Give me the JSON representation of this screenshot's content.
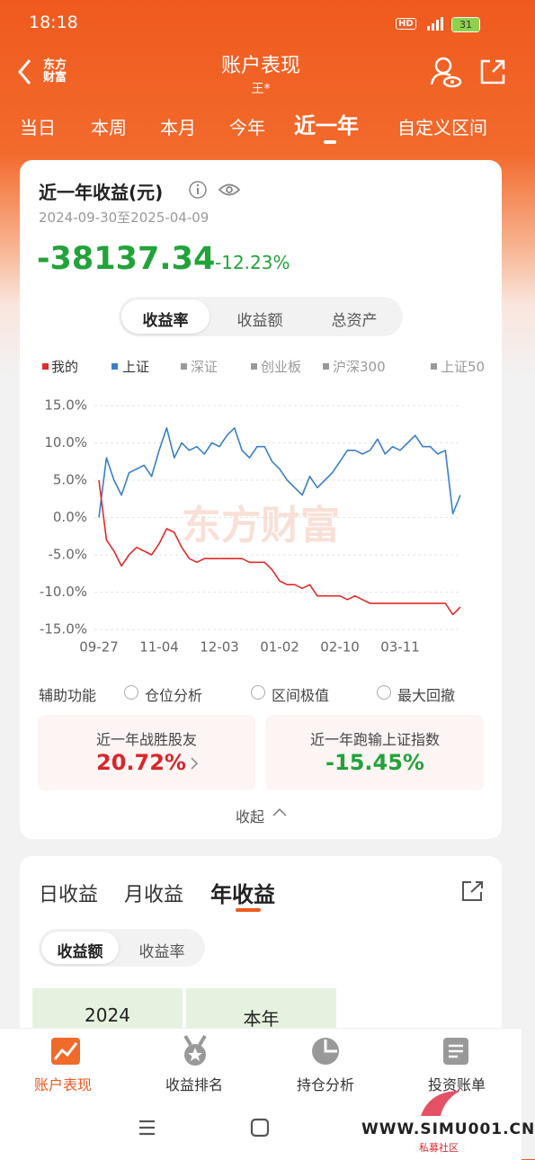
{
  "status_bar": {
    "time": "18:18",
    "battery": "31"
  },
  "header": {
    "logo": "东方财富",
    "title": "账户表现",
    "subtitle": "王*"
  },
  "tabs": [
    "当日",
    "本周",
    "本月",
    "今年",
    "近一年",
    "自定义区间"
  ],
  "summary": {
    "title": "近一年收益(元)",
    "date_range": "2024-09-30至2025-04-09",
    "amount": "-38137.34",
    "percent": "-12.23%"
  },
  "metric_tabs": [
    "收益率",
    "收益额",
    "总资产"
  ],
  "legend_extra": [
    "深证",
    "创业板",
    "沪深300",
    "上证50"
  ],
  "chart_data": {
    "type": "line",
    "watermark": "东方财富",
    "categories": [
      "09-27",
      null,
      null,
      null,
      null,
      null,
      null,
      null,
      "11-04",
      null,
      null,
      null,
      null,
      null,
      null,
      null,
      "12-03",
      null,
      null,
      null,
      null,
      null,
      null,
      null,
      "01-02",
      null,
      null,
      null,
      null,
      null,
      null,
      null,
      "02-10",
      null,
      null,
      null,
      null,
      null,
      null,
      null,
      "03-11",
      null,
      null,
      null,
      null,
      null,
      null,
      null,
      null
    ],
    "series": [
      {
        "name": "我的",
        "color": "#e02a2a",
        "values": [
          5,
          -3,
          -4.5,
          -6.5,
          -5,
          -4,
          -4.5,
          -5,
          -3.5,
          -1.5,
          -2,
          -4,
          -5.5,
          -6,
          -5.5,
          -5.5,
          -5.5,
          -5.5,
          -5.5,
          -5.5,
          -6,
          -6,
          -6,
          -7,
          -8.5,
          -9,
          -9,
          -9.5,
          -9,
          -10.5,
          -10.5,
          -10.5,
          -10.5,
          -11,
          -10.5,
          -11,
          -11.5,
          -11.5,
          -11.5,
          -11.5,
          -11.5,
          -11.5,
          -11.5,
          -11.5,
          -11.5,
          -11.5,
          -11.5,
          -13,
          -12
        ]
      },
      {
        "name": "上证",
        "color": "#3b7ec8",
        "values": [
          0,
          8,
          5,
          3,
          6,
          6.5,
          7,
          5.5,
          9,
          12,
          8,
          10,
          9,
          9.5,
          8.5,
          10,
          9.5,
          11,
          12,
          9,
          8,
          9.5,
          9.5,
          7.5,
          6.5,
          5,
          4,
          3,
          5.5,
          4,
          5,
          6,
          7.5,
          9,
          9,
          8.5,
          9,
          10.5,
          8.5,
          9.5,
          9,
          10,
          11,
          9.5,
          9.5,
          8.5,
          9,
          0.5,
          3
        ]
      }
    ],
    "ylim": [
      -15,
      15
    ],
    "yticks": [
      {
        "value": 15,
        "label": "15.0%"
      },
      {
        "value": 10,
        "label": "10.0%"
      },
      {
        "value": 5,
        "label": "5.0%"
      },
      {
        "value": 0,
        "label": "0.0%"
      },
      {
        "value": -5,
        "label": "-5.0%"
      },
      {
        "value": -10,
        "label": "-10.0%"
      },
      {
        "value": -15,
        "label": "-15.0%"
      }
    ],
    "grid": true
  },
  "aux": {
    "label": "辅助功能",
    "options": [
      "仓位分析",
      "区间极值",
      "最大回撤"
    ]
  },
  "stats": [
    {
      "label": "近一年战胜股友",
      "value": "20.72%"
    },
    {
      "label": "近一年跑输上证指数",
      "value": "-15.45%"
    }
  ],
  "collapse": "收起",
  "period_tabs": [
    "日收益",
    "月收益",
    "年收益"
  ],
  "sub_tabs": [
    "收益额",
    "收益率"
  ],
  "year_cells": [
    "2024",
    "本年"
  ],
  "bottom_nav": [
    "账户表现",
    "收益排名",
    "持仓分析",
    "投资账单"
  ],
  "site_watermark": {
    "url": "WWW.SIMU001.CN",
    "name": "私募社区"
  }
}
